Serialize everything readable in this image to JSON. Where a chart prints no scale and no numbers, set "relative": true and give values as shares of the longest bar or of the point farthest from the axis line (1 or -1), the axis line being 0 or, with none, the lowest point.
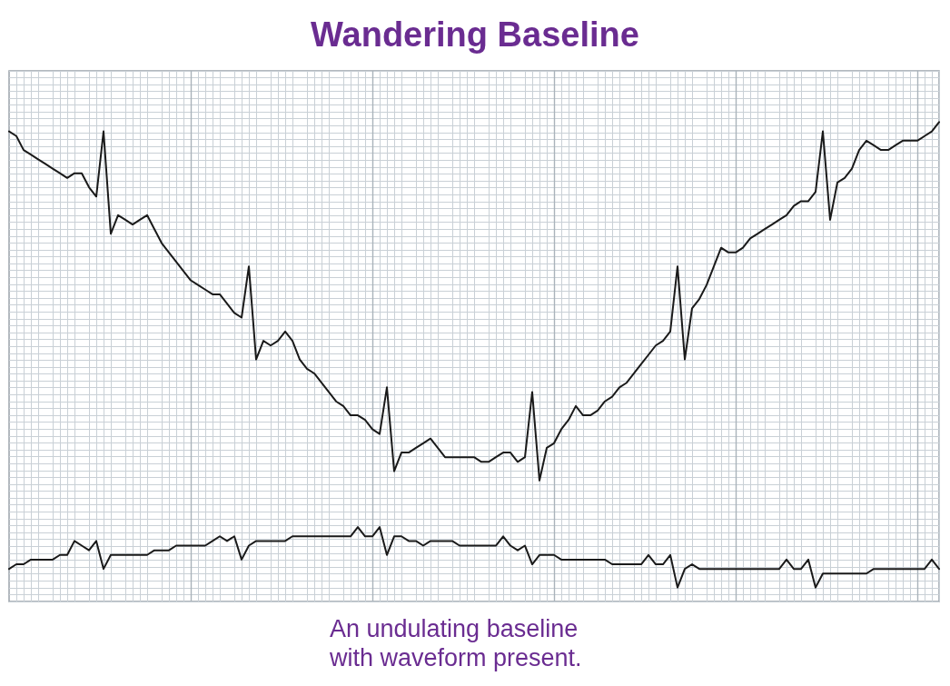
{
  "chart_data": {
    "type": "line",
    "title": "Wandering Baseline",
    "annotations": [
      "An undulating baseline with waveform present."
    ],
    "categories": [
      null,
      null,
      null,
      null,
      null,
      null,
      null,
      null,
      null,
      null,
      null,
      null,
      null,
      null,
      null,
      null,
      null,
      null,
      null,
      null,
      null,
      null,
      null,
      null,
      null,
      null,
      null,
      null,
      null,
      null,
      null,
      null,
      null,
      null,
      null,
      null,
      null,
      null,
      null,
      null,
      null,
      null,
      null,
      null,
      null,
      null,
      null,
      null,
      null,
      null,
      null,
      null,
      null,
      null,
      null,
      null,
      null,
      null,
      null,
      null,
      null,
      null,
      null,
      null,
      null,
      null,
      null,
      null,
      null,
      null,
      null,
      null,
      null,
      null,
      null,
      null,
      null,
      null,
      null,
      null,
      null,
      null,
      null,
      null,
      null,
      null,
      null,
      null,
      null,
      null,
      null,
      null,
      null,
      null,
      null,
      null,
      null,
      null,
      null,
      null,
      null,
      null,
      null,
      null,
      null,
      null,
      null,
      null,
      null,
      null,
      null,
      null,
      null,
      null,
      null,
      null,
      null,
      null,
      null,
      null,
      null,
      null,
      null,
      null,
      null,
      null,
      null,
      null,
      null
    ],
    "relative": true,
    "grid": true,
    "marker": "none",
    "line_style": "solid",
    "series": [
      {
        "color": "#1a1a1a",
        "values": [
          0.98,
          0.97,
          0.94,
          0.93,
          0.92,
          0.91,
          0.9,
          0.89,
          0.88,
          0.89,
          0.89,
          0.86,
          0.84,
          0.98,
          0.76,
          0.8,
          0.79,
          0.78,
          0.79,
          0.8,
          0.77,
          0.74,
          0.72,
          0.7,
          0.68,
          0.66,
          0.65,
          0.64,
          0.63,
          0.63,
          0.61,
          0.59,
          0.58,
          0.69,
          0.49,
          0.53,
          0.52,
          0.53,
          0.55,
          0.53,
          0.49,
          0.47,
          0.46,
          0.44,
          0.42,
          0.4,
          0.39,
          0.37,
          0.37,
          0.36,
          0.34,
          0.33,
          0.43,
          0.25,
          0.29,
          0.29,
          0.3,
          0.31,
          0.32,
          0.3,
          0.28,
          0.28,
          0.28,
          0.28,
          0.28,
          0.27,
          0.27,
          0.28,
          0.29,
          0.29,
          0.27,
          0.28,
          0.42,
          0.23,
          0.3,
          0.31,
          0.34,
          0.36,
          0.39,
          0.37,
          0.37,
          0.38,
          0.4,
          0.41,
          0.43,
          0.44,
          0.46,
          0.48,
          0.5,
          0.52,
          0.53,
          0.55,
          0.69,
          0.49,
          0.6,
          0.62,
          0.65,
          0.69,
          0.73,
          0.72,
          0.72,
          0.73,
          0.75,
          0.76,
          0.77,
          0.78,
          0.79,
          0.8,
          0.82,
          0.83,
          0.83,
          0.85,
          0.98,
          0.79,
          0.87,
          0.88,
          0.9,
          0.94,
          0.96,
          0.95,
          0.94,
          0.94,
          0.95,
          0.96,
          0.96,
          0.96,
          0.97,
          0.98,
          1
        ]
      },
      {
        "color": "#1a1a1a",
        "values": [
          0.04,
          0.05,
          0.05,
          0.06,
          0.06,
          0.06,
          0.06,
          0.07,
          0.07,
          0.1,
          0.09,
          0.08,
          0.1,
          0.04,
          0.07,
          0.07,
          0.07,
          0.07,
          0.07,
          0.07,
          0.08,
          0.08,
          0.08,
          0.09,
          0.09,
          0.09,
          0.09,
          0.09,
          0.1,
          0.11,
          0.1,
          0.11,
          0.06,
          0.09,
          0.1,
          0.1,
          0.1,
          0.1,
          0.1,
          0.11,
          0.11,
          0.11,
          0.11,
          0.11,
          0.11,
          0.11,
          0.11,
          0.11,
          0.13,
          0.11,
          0.11,
          0.13,
          0.07,
          0.11,
          0.11,
          0.1,
          0.1,
          0.09,
          0.1,
          0.1,
          0.1,
          0.1,
          0.09,
          0.09,
          0.09,
          0.09,
          0.09,
          0.09,
          0.11,
          0.09,
          0.08,
          0.09,
          0.05,
          0.07,
          0.07,
          0.07,
          0.06,
          0.06,
          0.06,
          0.06,
          0.06,
          0.06,
          0.06,
          0.05,
          0.05,
          0.05,
          0.05,
          0.05,
          0.07,
          0.05,
          0.05,
          0.07,
          0,
          0.04,
          0.05,
          0.04,
          0.04,
          0.04,
          0.04,
          0.04,
          0.04,
          0.04,
          0.04,
          0.04,
          0.04,
          0.04,
          0.04,
          0.06,
          0.04,
          0.04,
          0.06,
          0,
          0.03,
          0.03,
          0.03,
          0.03,
          0.03,
          0.03,
          0.03,
          0.04,
          0.04,
          0.04,
          0.04,
          0.04,
          0.04,
          0.04,
          0.04,
          0.06,
          0.04
        ]
      }
    ]
  }
}
